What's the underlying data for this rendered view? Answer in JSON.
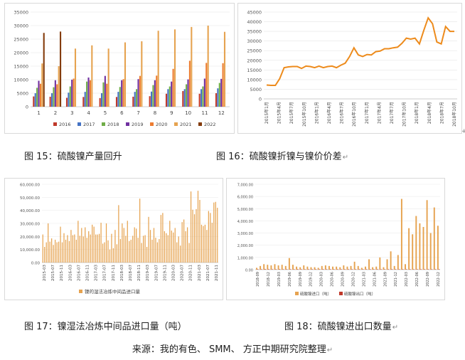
{
  "chart_data": [
    {
      "type": "bar",
      "categories": [
        "1",
        "2",
        "3",
        "4",
        "5",
        "6",
        "7",
        "8",
        "9",
        "10",
        "11",
        "12"
      ],
      "ylim": [
        0,
        35000
      ],
      "yticks": [
        "0",
        "5000",
        "10000",
        "15000",
        "20000",
        "25000",
        "30000",
        "35000"
      ],
      "legend_position": "bottom",
      "grid": true,
      "series": [
        {
          "name": "2016",
          "color": "#c0392b",
          "values": [
            3800,
            3700,
            3300,
            3600,
            3200,
            3600,
            3700,
            3900,
            4800,
            5800,
            4800,
            5000
          ]
        },
        {
          "name": "2017",
          "color": "#4472c4",
          "values": [
            5000,
            5000,
            5200,
            5500,
            5000,
            5500,
            5500,
            5600,
            6500,
            6500,
            6500,
            6800
          ]
        },
        {
          "name": "2018",
          "color": "#70ad47",
          "values": [
            7000,
            7200,
            7500,
            9300,
            9000,
            7300,
            6500,
            8000,
            7500,
            8300,
            7500,
            8800
          ]
        },
        {
          "name": "2019",
          "color": "#7030a0",
          "values": [
            9600,
            9800,
            10000,
            10800,
            11400,
            9800,
            10200,
            9800,
            9300,
            10100,
            10400,
            10300
          ]
        },
        {
          "name": "2020",
          "color": "#ed7d31",
          "values": [
            8500,
            8300,
            10400,
            9800,
            8500,
            10200,
            11400,
            11500,
            14000,
            17000,
            16200,
            16100
          ]
        },
        {
          "name": "2021",
          "color": "#e6a350",
          "values": [
            16000,
            15000,
            21500,
            22700,
            21500,
            23800,
            24200,
            28100,
            28600,
            29500,
            30000,
            27700
          ]
        },
        {
          "name": "2022",
          "color": "#843c0c",
          "values": [
            27300,
            27800,
            null,
            null,
            null,
            null,
            null,
            null,
            null,
            null,
            null,
            null
          ]
        }
      ]
    },
    {
      "type": "line",
      "ylim": [
        0,
        45000
      ],
      "yticks": [
        "0",
        "5000",
        "10000",
        "15000",
        "20000",
        "25000",
        "30000",
        "35000",
        "40000",
        "45000"
      ],
      "xticks": [
        "2015年1月",
        "2015年4月",
        "2015年7月",
        "2015年10月",
        "2016年1月",
        "2016年4月",
        "2016年7月",
        "2016年10月",
        "2017年1月",
        "2017年4月",
        "2017年7月",
        "2017年10月",
        "2018年1月",
        "2018年4月",
        "2018年7月",
        "2018年10月"
      ],
      "grid": true,
      "series": [
        {
          "color": "#ed8b1c",
          "values": [
            7200,
            7000,
            7000,
            10500,
            16200,
            16600,
            16800,
            16800,
            15800,
            17000,
            16800,
            16200,
            17000,
            16200,
            16800,
            17000,
            16200,
            17500,
            18500,
            22000,
            26500,
            22800,
            22000,
            23000,
            22800,
            24500,
            24800,
            26000,
            26000,
            26500,
            26800,
            28800,
            31500,
            31000,
            31500,
            28500,
            35500,
            42000,
            39000,
            29500,
            28500,
            37500,
            35000,
            35000
          ]
        }
      ]
    },
    {
      "type": "bar",
      "ylim": [
        0,
        60000
      ],
      "yticks": [
        "0.00",
        "10,000.00",
        "20,000.00",
        "30,000.00",
        "40,000.00",
        "50,000.00",
        "60,000.00"
      ],
      "xticks": [
        "2015-03",
        "2015-07",
        "2015-11",
        "2016-03",
        "2016-07",
        "2016-11",
        "2017-03",
        "2017-07",
        "2017-11",
        "2018-03",
        "2018-07",
        "2018-11",
        "2019-03",
        "2019-07",
        "2019-11",
        "2020-03",
        "2020-07",
        "2020-11",
        "2021-03",
        "2021-07",
        "2021-11"
      ],
      "legend_position": "bottom",
      "grid": true,
      "series": [
        {
          "name": "镍的湿法冶炼中间品进口量",
          "color": "#e6a350",
          "values": [
            21500,
            12000,
            15500,
            30000,
            16000,
            18500,
            13500,
            17500,
            15500,
            16000,
            27500,
            15500,
            22500,
            17500,
            21000,
            16500,
            25000,
            21000,
            21500,
            17500,
            32000,
            20500,
            26500,
            20000,
            27000,
            19000,
            24000,
            21500,
            29000,
            27500,
            21500,
            21500,
            22000,
            30500,
            14500,
            15500,
            30000,
            17000,
            10000,
            22000,
            11000,
            25000,
            14000,
            44000,
            18000,
            30000,
            26500,
            20500,
            32000,
            16500,
            17500,
            20500,
            27000,
            26000,
            19000,
            49000,
            15000,
            20500,
            21000,
            12000,
            35000,
            25000,
            17500,
            26500,
            19000,
            15500,
            18000,
            36500,
            38000,
            24000,
            22500,
            21000,
            32000,
            24500,
            23000,
            26500,
            15500,
            20000,
            13000,
            31000,
            33000,
            24000,
            27000,
            15000,
            54500,
            40500,
            37000,
            41000,
            55000,
            48000,
            29000,
            28000,
            29000,
            25000,
            39500,
            38000,
            30500,
            46000,
            46500,
            42000
          ]
        }
      ]
    },
    {
      "type": "bar",
      "ylim": [
        0,
        7000
      ],
      "yticks": [
        "0.00",
        "1,000.00",
        "2,000.00",
        "3,000.00",
        "4,000.00",
        "5,000.00",
        "6,000.00",
        "7,000.00"
      ],
      "xticks": [
        "2018-09",
        "2018-12",
        "2019-03",
        "2019-06",
        "2019-09",
        "2019-12",
        "2020-03",
        "2020-06",
        "2020-09",
        "2020-12",
        "2021-03",
        "2021-06",
        "2021-09",
        "2021-12",
        "2022-03",
        "2022-06",
        "2022-09",
        "2022-12"
      ],
      "legend_position": "bottom",
      "grid": true,
      "series": [
        {
          "name": "硫酸镍进口（吨）",
          "color": "#e6a350",
          "values": [
            150,
            300,
            450,
            400,
            350,
            450,
            350,
            400,
            300,
            950,
            400,
            250,
            200,
            350,
            250,
            200,
            200,
            150,
            300,
            350,
            300,
            250,
            250,
            200,
            350,
            250,
            300,
            650,
            300,
            150,
            250,
            850,
            200,
            250,
            1000,
            200,
            850,
            1500,
            300,
            1200,
            5800,
            450,
            3400,
            2900,
            4400,
            3800,
            3500,
            5700,
            3000,
            5100,
            3600
          ]
        },
        {
          "name": "硫酸镍出口（吨）",
          "color": "#c0392b",
          "values": [
            30,
            20,
            50,
            40,
            20,
            30,
            40,
            30,
            20,
            20,
            30,
            40,
            20,
            30,
            20,
            20,
            30,
            20,
            40,
            30,
            20,
            30,
            20,
            20,
            30,
            20,
            30,
            20,
            20,
            30,
            20,
            30,
            20,
            20,
            30,
            20,
            30,
            40,
            20,
            30,
            30,
            20,
            30,
            20,
            30,
            20,
            30,
            20,
            30,
            20,
            30
          ]
        }
      ]
    }
  ],
  "captions": {
    "fig15": "图 15：硫酸镍产量回升",
    "fig16": "图 16：硫酸镍折镍与镍价价差",
    "fig17": "图 17：镍湿法冶炼中间品进口量（吨）",
    "fig18": "图 18：硫酸镍进出口数量"
  },
  "return_mark": "↵",
  "cursor_mark": "+",
  "source": "来源：我的有色、 SMM、 方正中期研究院整理"
}
